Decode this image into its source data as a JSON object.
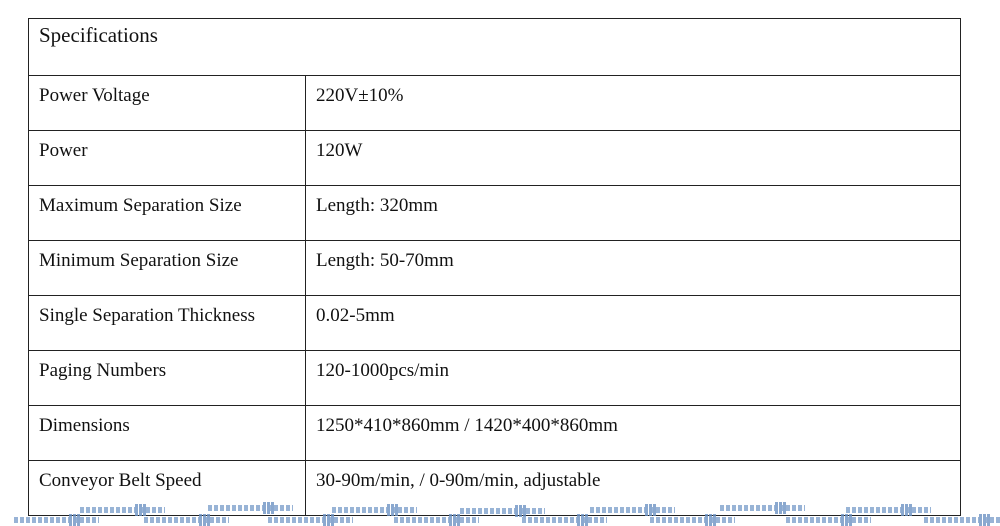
{
  "table": {
    "title": "Specifications",
    "rows": [
      {
        "label": "Power Voltage",
        "value": "220V±10%"
      },
      {
        "label": "Power",
        "value": "120W"
      },
      {
        "label": "Maximum Separation Size",
        "value": "Length: 320mm"
      },
      {
        "label": "Minimum Separation Size",
        "value": "Length: 50-70mm"
      },
      {
        "label": "Single Separation Thickness",
        "value": "0.02-5mm"
      },
      {
        "label": "Paging Numbers",
        "value": "120-1000pcs/min"
      },
      {
        "label": "Dimensions",
        "value": "1250*410*860mm / 1420*400*860mm"
      },
      {
        "label": "Conveyor Belt Speed",
        "value": "30-90m/min, / 0-90m/min, adjustable"
      }
    ]
  },
  "colors": {
    "decoration": "#7fa1cc",
    "border": "#222222"
  }
}
